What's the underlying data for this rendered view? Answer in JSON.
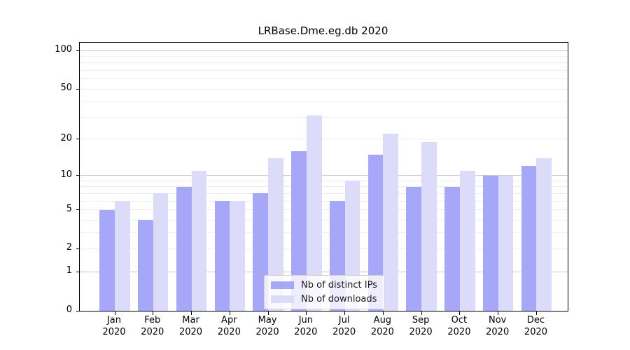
{
  "chart_data": {
    "type": "bar",
    "title": "LRBase.Dme.eg.db 2020",
    "categories": [
      "Jan 2020",
      "Feb 2020",
      "Mar 2020",
      "Apr 2020",
      "May 2020",
      "Jun 2020",
      "Jul 2020",
      "Aug 2020",
      "Sep 2020",
      "Oct 2020",
      "Nov 2020",
      "Dec 2020"
    ],
    "x_tick_months": [
      "Jan",
      "Feb",
      "Mar",
      "Apr",
      "May",
      "Jun",
      "Jul",
      "Aug",
      "Sep",
      "Oct",
      "Nov",
      "Dec"
    ],
    "x_tick_year": "2020",
    "series": [
      {
        "name": "Nb of distinct IPs",
        "color": "#a7a7f8",
        "values": [
          5,
          4,
          8,
          6,
          7,
          16,
          6,
          15,
          8,
          8,
          10,
          12
        ]
      },
      {
        "name": "Nb of downloads",
        "color": "#dcdcfa",
        "values": [
          6,
          7,
          11,
          6,
          14,
          31,
          9,
          22,
          19,
          11,
          10,
          14
        ]
      }
    ],
    "xlabel": "",
    "ylabel": "",
    "yscale": "log1p",
    "ylim": [
      0,
      114
    ],
    "yticks": [
      0,
      1,
      2,
      5,
      10,
      20,
      50,
      100
    ],
    "yticks_minor": [
      3,
      4,
      6,
      7,
      8,
      9,
      30,
      40,
      60,
      70,
      80,
      90
    ],
    "grid": "horizontal",
    "legend_position": "lower-center-inside"
  },
  "colors": {
    "grid_major": "#c9c9c9",
    "grid_minor": "#ededed",
    "axis": "#000000",
    "background": "#ffffff"
  }
}
